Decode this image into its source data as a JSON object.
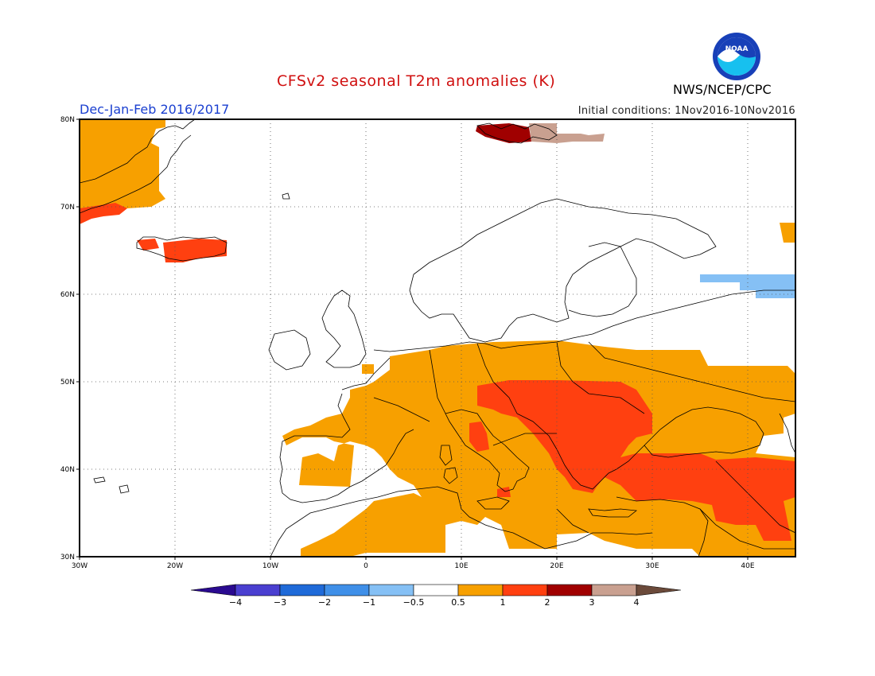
{
  "header": {
    "title": "CFSv2 seasonal T2m anomalies (K)",
    "season": "Dec-Jan-Feb 2016/2017",
    "initial_conditions": "Initial conditions: 1Nov2016-10Nov2016",
    "org": "NWS/NCEP/CPC",
    "logo_text": "NOAA"
  },
  "map": {
    "lon_range": [
      -30,
      45
    ],
    "lat_range": [
      30,
      80
    ],
    "x_ticks": [
      {
        "value": -30,
        "label": "30W"
      },
      {
        "value": -20,
        "label": "20W"
      },
      {
        "value": -10,
        "label": "10W"
      },
      {
        "value": 0,
        "label": "0"
      },
      {
        "value": 10,
        "label": "10E"
      },
      {
        "value": 20,
        "label": "20E"
      },
      {
        "value": 30,
        "label": "30E"
      },
      {
        "value": 40,
        "label": "40E"
      }
    ],
    "y_ticks": [
      {
        "value": 30,
        "label": "30N"
      },
      {
        "value": 40,
        "label": "40N"
      },
      {
        "value": 50,
        "label": "50N"
      },
      {
        "value": 60,
        "label": "60N"
      },
      {
        "value": 70,
        "label": "70N"
      },
      {
        "value": 80,
        "label": "80N"
      }
    ],
    "grid": true
  },
  "colorbar": {
    "levels": [
      "-4",
      "-3",
      "-2",
      "-1",
      "-0.5",
      "0.5",
      "1",
      "2",
      "3",
      "4"
    ],
    "colors": [
      "#2a0a90",
      "#4a3fd0",
      "#1f6ad8",
      "#3f8fe8",
      "#85c0f5",
      "#ffffff",
      "#f7a000",
      "#ff4010",
      "#a00000",
      "#c9a090",
      "#6b4a3a"
    ]
  },
  "anomaly_regions": [
    {
      "level": "0.5-1",
      "color": "#f7a000",
      "description": "Western and central Europe"
    },
    {
      "level": "1-2",
      "color": "#ff4010",
      "description": "Balkans and Turkey"
    },
    {
      "level": "2-3",
      "color": "#a00000",
      "description": "Svalbard"
    },
    {
      "level": "3-4",
      "color": "#c9a090",
      "description": "Svalbard"
    },
    {
      "level": "-0.5--1",
      "color": "#85c0f5",
      "description": "Northwest Russia"
    }
  ]
}
